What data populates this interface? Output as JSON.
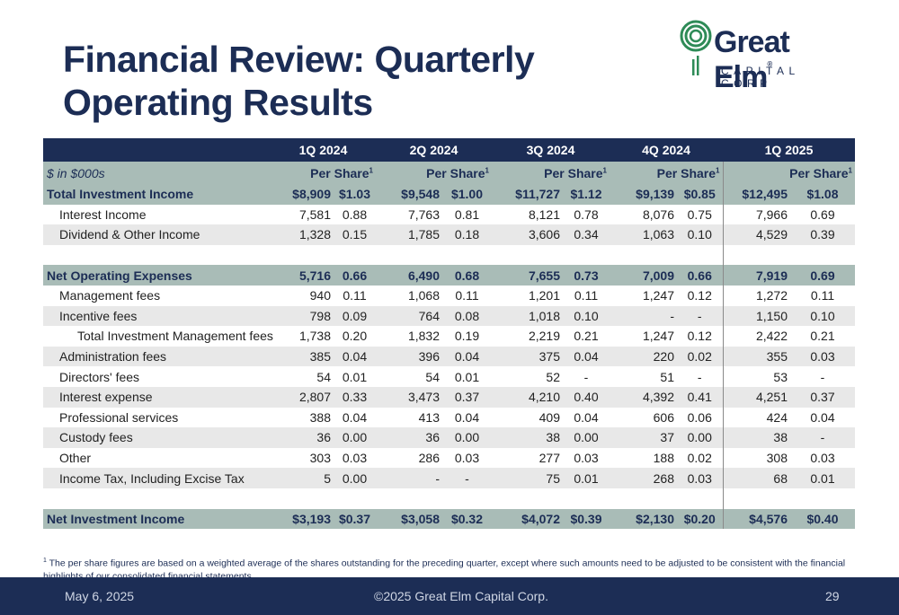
{
  "title_line1": "Financial Review: Quarterly",
  "title_line2": "Operating Results",
  "logo": {
    "name": "Great Elm",
    "reg": "®",
    "sub": "CAPITAL CORP"
  },
  "quarters": [
    "1Q 2024",
    "2Q 2024",
    "3Q 2024",
    "4Q 2024",
    "1Q 2025"
  ],
  "unit_label": "$ in $000s",
  "per_share_label": "Per Share",
  "footnote_marker": "1",
  "rows": [
    {
      "label": "Total Investment Income",
      "v": [
        "$8,909",
        "$1.03",
        "$9,548",
        "$1.00",
        "$11,727",
        "$1.12",
        "$9,139",
        "$0.85",
        "$12,495",
        "$1.08"
      ]
    },
    {
      "label": "Interest Income",
      "v": [
        "7,581",
        "0.88",
        "7,763",
        "0.81",
        "8,121",
        "0.78",
        "8,076",
        "0.75",
        "7,966",
        "0.69"
      ]
    },
    {
      "label": "Dividend & Other Income",
      "v": [
        "1,328",
        "0.15",
        "1,785",
        "0.18",
        "3,606",
        "0.34",
        "1,063",
        "0.10",
        "4,529",
        "0.39"
      ]
    },
    {
      "label": "Net Operating Expenses",
      "v": [
        "5,716",
        "0.66",
        "6,490",
        "0.68",
        "7,655",
        "0.73",
        "7,009",
        "0.66",
        "7,919",
        "0.69"
      ]
    },
    {
      "label": "Management fees",
      "v": [
        "940",
        "0.11",
        "1,068",
        "0.11",
        "1,201",
        "0.11",
        "1,247",
        "0.12",
        "1,272",
        "0.11"
      ]
    },
    {
      "label": "Incentive fees",
      "v": [
        "798",
        "0.09",
        "764",
        "0.08",
        "1,018",
        "0.10",
        "-",
        "-",
        "1,150",
        "0.10"
      ]
    },
    {
      "label": "Total Investment Management fees",
      "v": [
        "1,738",
        "0.20",
        "1,832",
        "0.19",
        "2,219",
        "0.21",
        "1,247",
        "0.12",
        "2,422",
        "0.21"
      ]
    },
    {
      "label": "Administration fees",
      "v": [
        "385",
        "0.04",
        "396",
        "0.04",
        "375",
        "0.04",
        "220",
        "0.02",
        "355",
        "0.03"
      ]
    },
    {
      "label": "Directors' fees",
      "v": [
        "54",
        "0.01",
        "54",
        "0.01",
        "52",
        "-",
        "51",
        "-",
        "53",
        "-"
      ]
    },
    {
      "label": "Interest expense",
      "v": [
        "2,807",
        "0.33",
        "3,473",
        "0.37",
        "4,210",
        "0.40",
        "4,392",
        "0.41",
        "4,251",
        "0.37"
      ]
    },
    {
      "label": "Professional services",
      "v": [
        "388",
        "0.04",
        "413",
        "0.04",
        "409",
        "0.04",
        "606",
        "0.06",
        "424",
        "0.04"
      ]
    },
    {
      "label": "Custody fees",
      "v": [
        "36",
        "0.00",
        "36",
        "0.00",
        "38",
        "0.00",
        "37",
        "0.00",
        "38",
        "-"
      ]
    },
    {
      "label": "Other",
      "v": [
        "303",
        "0.03",
        "286",
        "0.03",
        "277",
        "0.03",
        "188",
        "0.02",
        "308",
        "0.03"
      ]
    },
    {
      "label": "Income Tax, Including Excise Tax",
      "v": [
        "5",
        "0.00",
        "-",
        "-",
        "75",
        "0.01",
        "268",
        "0.03",
        "68",
        "0.01"
      ]
    },
    {
      "label": "Net Investment Income",
      "v": [
        "$3,193",
        "$0.37",
        "$3,058",
        "$0.32",
        "$4,072",
        "$0.39",
        "$2,130",
        "$0.20",
        "$4,576",
        "$0.40"
      ]
    }
  ],
  "footnote": "The per share figures are based on a weighted average of the shares outstanding for the preceding quarter, except where such amounts need to be adjusted to be consistent with the financial highlights of our consolidated financial statements.",
  "footer": {
    "date": "May 6, 2025",
    "copyright": "©2025 Great Elm Capital Corp.",
    "page": "29"
  },
  "colors": {
    "navy": "#1c2d55",
    "sage": "#a9bcb7",
    "stripe": "#e8e8e8",
    "logo_green": "#2e8b57"
  }
}
